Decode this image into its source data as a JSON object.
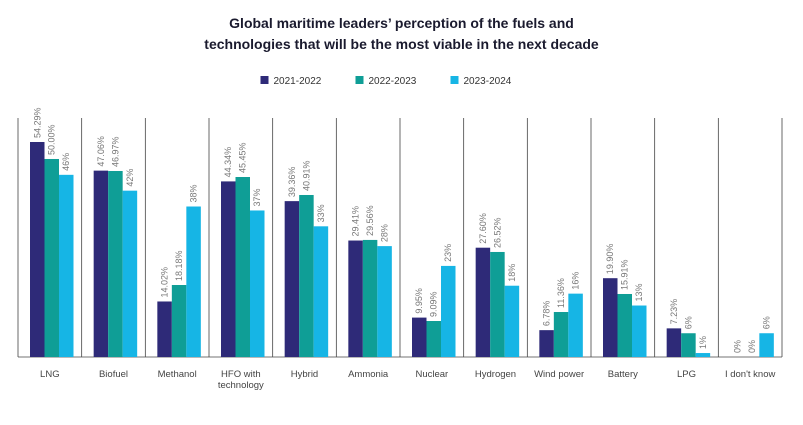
{
  "chart_data": {
    "type": "bar",
    "title": "Global maritime leaders’ perception of the fuels and technologies that will be the most viable in the next decade",
    "categories": [
      "LNG",
      "Biofuel",
      "Methanol",
      "HFO with technology",
      "Hybrid",
      "Ammonia",
      "Nuclear",
      "Hydrogen",
      "Wind power",
      "Battery",
      "LPG",
      "I don't know"
    ],
    "series": [
      {
        "name": "2021-2022",
        "color": "#2e2a78",
        "values": [
          54.29,
          47.06,
          14.02,
          44.34,
          39.36,
          29.41,
          9.95,
          27.6,
          6.78,
          19.9,
          7.23,
          0
        ],
        "value_labels": [
          "54.29%",
          "47.06%",
          "14.02%",
          "44.34%",
          "39.36%",
          "29.41%",
          "9.95%",
          "27.60%",
          "6.78%",
          "19.90%",
          "7.23%",
          "0%"
        ]
      },
      {
        "name": "2022-2023",
        "color": "#0f9e96",
        "values": [
          50.0,
          46.97,
          18.18,
          45.45,
          40.91,
          29.56,
          9.09,
          26.52,
          11.36,
          15.91,
          6,
          0
        ],
        "value_labels": [
          "50.00%",
          "46.97%",
          "18.18%",
          "45.45%",
          "40.91%",
          "29.56%",
          "9.09%",
          "26.52%",
          "11.36%",
          "15.91%",
          "6%",
          "0%"
        ]
      },
      {
        "name": "2023-2024",
        "color": "#16b5e5",
        "values": [
          46,
          42,
          38,
          37,
          33,
          28,
          23,
          18,
          16,
          13,
          1,
          6
        ],
        "value_labels": [
          "46%",
          "42%",
          "38%",
          "37%",
          "33%",
          "28%",
          "23%",
          "18%",
          "16%",
          "13%",
          "1%",
          "6%"
        ]
      }
    ]
  }
}
